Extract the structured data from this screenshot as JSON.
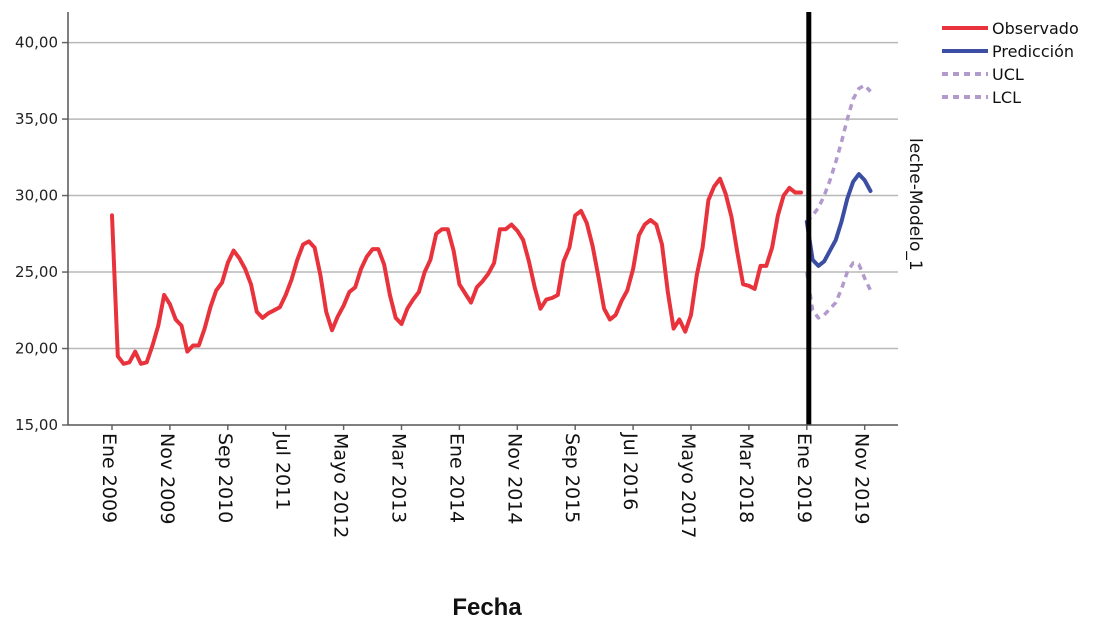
{
  "chart_data": {
    "type": "line",
    "title": "",
    "xlabel": "Fecha",
    "ylabel": "",
    "side_label": "leche-Modelo_1",
    "ylim": [
      15,
      42
    ],
    "yticks": [
      15,
      20,
      25,
      30,
      35,
      40
    ],
    "ytick_labels": [
      "15,00",
      "20,00",
      "25,00",
      "30,00",
      "35,00",
      "40,00"
    ],
    "grid": true,
    "legend_position": "top-right",
    "x_start": "2009-01",
    "x_months_total": 132,
    "xtick_labels": [
      "Ene 2009",
      "Nov 2009",
      "Sep 2010",
      "Jul 2011",
      "Mayo 2012",
      "Mar 2013",
      "Ene 2014",
      "Nov 2014",
      "Sep 2015",
      "Jul 2016",
      "Mayo 2017",
      "Mar 2018",
      "Ene 2019",
      "Nov 2019"
    ],
    "xtick_months": [
      0,
      10,
      20,
      30,
      40,
      50,
      60,
      70,
      80,
      90,
      100,
      110,
      120,
      130
    ],
    "divider_month": 120,
    "series": [
      {
        "name": "Observado",
        "color": "#e8333d",
        "dash": "solid",
        "x_start_month": 0,
        "values": [
          28.7,
          19.5,
          19.0,
          19.1,
          19.8,
          19.0,
          19.1,
          20.2,
          21.5,
          23.5,
          22.9,
          21.9,
          21.5,
          19.8,
          20.2,
          20.2,
          21.3,
          22.7,
          23.8,
          24.3,
          25.6,
          26.4,
          25.9,
          25.2,
          24.2,
          22.4,
          22.0,
          22.3,
          22.5,
          22.7,
          23.5,
          24.5,
          25.8,
          26.8,
          27.0,
          26.6,
          24.8,
          22.4,
          21.2,
          22.1,
          22.8,
          23.7,
          24.0,
          25.2,
          26.0,
          26.5,
          26.5,
          25.5,
          23.5,
          22.0,
          21.6,
          22.6,
          23.2,
          23.7,
          25.0,
          25.8,
          27.5,
          27.8,
          27.8,
          26.4,
          24.2,
          23.6,
          23.0,
          24.0,
          24.4,
          24.9,
          25.6,
          27.8,
          27.8,
          28.1,
          27.7,
          27.1,
          25.7,
          24.0,
          22.6,
          23.2,
          23.3,
          23.5,
          25.7,
          26.6,
          28.7,
          29.0,
          28.2,
          26.7,
          24.7,
          22.6,
          21.9,
          22.2,
          23.1,
          23.8,
          25.2,
          27.4,
          28.1,
          28.4,
          28.1,
          26.8,
          23.7,
          21.3,
          21.9,
          21.1,
          22.2,
          24.8,
          26.6,
          29.7,
          30.6,
          31.1,
          30.1,
          28.6,
          26.3,
          24.2,
          24.1,
          23.9,
          25.4,
          25.4,
          26.6,
          28.7,
          30.0,
          30.5,
          30.2,
          30.2
        ]
      },
      {
        "name": "Predicción",
        "color": "#3b4ea3",
        "dash": "solid",
        "x_start_month": 120,
        "values": [
          28.3,
          25.8,
          25.4,
          25.7,
          26.4,
          27.1,
          28.3,
          29.8,
          30.9,
          31.4,
          31.0,
          30.3
        ]
      },
      {
        "name": "UCL",
        "color": "#b29bcc",
        "dash": "dashed",
        "x_start_month": 120,
        "values": [
          28.3,
          28.7,
          29.2,
          30.0,
          31.0,
          32.2,
          33.5,
          35.0,
          36.3,
          37.0,
          37.2,
          36.8
        ]
      },
      {
        "name": "LCL",
        "color": "#b29bcc",
        "dash": "dashed",
        "x_start_month": 120,
        "values": [
          25.0,
          22.5,
          22.0,
          22.2,
          22.6,
          23.0,
          23.9,
          25.0,
          25.6,
          25.5,
          24.6,
          23.8
        ]
      }
    ]
  }
}
